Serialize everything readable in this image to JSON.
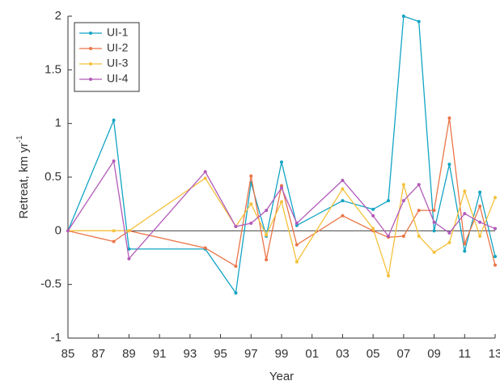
{
  "chart_data": {
    "type": "line",
    "xlabel": "Year",
    "ylabel": "Retreat, km yr",
    "ylabel_superscript": "-1",
    "x": [
      1985,
      1988,
      1989,
      1994,
      1996,
      1997,
      1998,
      1999,
      2000,
      2003,
      2005,
      2006,
      2007,
      2008,
      2009,
      2010,
      2011,
      2012,
      2013
    ],
    "series": [
      {
        "name": "UI-1",
        "color": "#12a4c4",
        "values": [
          0,
          1.03,
          -0.17,
          -0.17,
          -0.58,
          0.45,
          -0.05,
          0.64,
          0.05,
          0.28,
          0.2,
          0.28,
          2.0,
          1.95,
          0,
          0.62,
          -0.19,
          0.36,
          -0.24
        ]
      },
      {
        "name": "UI-2",
        "color": "#ea7548",
        "values": [
          0,
          -0.1,
          0,
          -0.16,
          -0.33,
          0.51,
          -0.27,
          0.42,
          -0.13,
          0.14,
          0,
          -0.06,
          -0.05,
          0.19,
          0.19,
          1.05,
          -0.12,
          0.23,
          -0.32
        ]
      },
      {
        "name": "UI-3",
        "color": "#f5c13c",
        "values": [
          0,
          0,
          0,
          0.49,
          0.04,
          0.25,
          -0.04,
          0.27,
          -0.29,
          0.39,
          0.02,
          -0.42,
          0.43,
          -0.05,
          -0.2,
          -0.11,
          0.37,
          -0.05,
          0.31
        ]
      },
      {
        "name": "UI-4",
        "color": "#b25ab9",
        "values": [
          0,
          0.65,
          -0.26,
          0.55,
          0.04,
          0.07,
          0.19,
          0.4,
          0.07,
          0.47,
          0.14,
          -0.05,
          0.28,
          0.43,
          0.08,
          -0.02,
          0.16,
          0.08,
          0.02
        ]
      }
    ],
    "xlim": [
      1985,
      2013
    ],
    "xticks": [
      {
        "value": 1985,
        "label": "85"
      },
      {
        "value": 1987,
        "label": "87"
      },
      {
        "value": 1989,
        "label": "89"
      },
      {
        "value": 1991,
        "label": "91"
      },
      {
        "value": 1993,
        "label": "93"
      },
      {
        "value": 1995,
        "label": "95"
      },
      {
        "value": 1997,
        "label": "97"
      },
      {
        "value": 1999,
        "label": "99"
      },
      {
        "value": 2001,
        "label": "01"
      },
      {
        "value": 2003,
        "label": "03"
      },
      {
        "value": 2005,
        "label": "05"
      },
      {
        "value": 2007,
        "label": "07"
      },
      {
        "value": 2009,
        "label": "09"
      },
      {
        "value": 2011,
        "label": "11"
      },
      {
        "value": 2013,
        "label": "13"
      }
    ],
    "ylim": [
      -1,
      2
    ],
    "yticks": [
      -1,
      -0.5,
      0,
      0.5,
      1,
      1.5,
      2
    ],
    "legend": "upper left"
  }
}
